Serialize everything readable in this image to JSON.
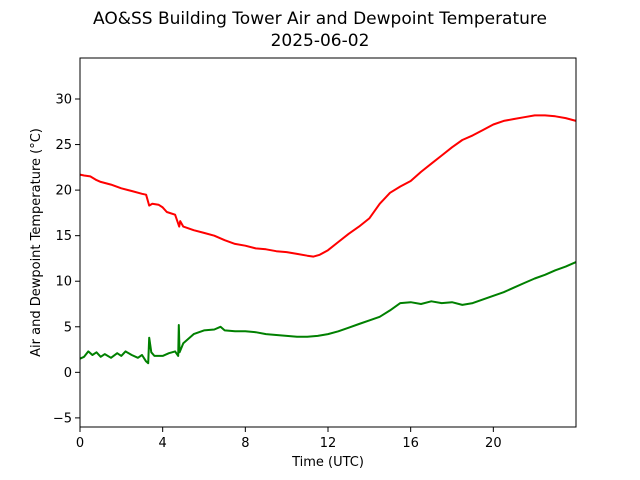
{
  "chart_data": {
    "type": "line",
    "title": "AO&SS Building Tower Air and Dewpoint Temperature",
    "subtitle": "2025-06-02",
    "xlabel": "Time (UTC)",
    "ylabel": "Air and Dewpoint Temperature (°C)",
    "xlim": [
      0,
      24
    ],
    "ylim": [
      -6,
      34.5
    ],
    "xticks": [
      0,
      4,
      8,
      12,
      16,
      20
    ],
    "yticks": [
      -5,
      0,
      5,
      10,
      15,
      20,
      25,
      30
    ],
    "grid": false,
    "legend": "none",
    "series": [
      {
        "color": "#ff0000",
        "x": [
          0,
          0.2,
          0.5,
          0.8,
          1.0,
          1.5,
          2.0,
          2.5,
          3.0,
          3.2,
          3.35,
          3.5,
          3.8,
          4.0,
          4.2,
          4.6,
          4.8,
          4.85,
          5.0,
          5.5,
          6.0,
          6.5,
          7.0,
          7.5,
          8.0,
          8.5,
          9.0,
          9.5,
          10.0,
          10.5,
          11.0,
          11.3,
          11.6,
          12.0,
          12.5,
          13.0,
          13.5,
          14.0,
          14.5,
          15.0,
          15.5,
          16.0,
          16.5,
          17.0,
          17.5,
          18.0,
          18.5,
          19.0,
          19.5,
          20.0,
          20.5,
          21.0,
          21.5,
          22.0,
          22.5,
          23.0,
          23.5,
          24.0
        ],
        "y": [
          21.7,
          21.6,
          21.5,
          21.1,
          20.9,
          20.6,
          20.2,
          19.9,
          19.6,
          19.5,
          18.3,
          18.5,
          18.4,
          18.1,
          17.6,
          17.3,
          16.0,
          16.6,
          16.0,
          15.6,
          15.3,
          15.0,
          14.5,
          14.1,
          13.9,
          13.6,
          13.5,
          13.3,
          13.2,
          13.0,
          12.8,
          12.7,
          12.9,
          13.4,
          14.3,
          15.2,
          16.0,
          16.9,
          18.5,
          19.7,
          20.4,
          21.0,
          22.0,
          22.9,
          23.8,
          24.7,
          25.5,
          26.0,
          26.6,
          27.2,
          27.6,
          27.8,
          28.0,
          28.2,
          28.2,
          28.1,
          27.9,
          27.6
        ]
      },
      {
        "color": "#008000",
        "x": [
          0,
          0.2,
          0.4,
          0.6,
          0.8,
          1.0,
          1.2,
          1.5,
          1.8,
          2.0,
          2.2,
          2.5,
          2.8,
          3.0,
          3.2,
          3.3,
          3.35,
          3.45,
          3.6,
          4.0,
          4.3,
          4.6,
          4.75,
          4.78,
          4.82,
          5.0,
          5.5,
          6.0,
          6.5,
          6.8,
          7.0,
          7.5,
          8.0,
          8.5,
          9.0,
          9.5,
          10.0,
          10.5,
          11.0,
          11.5,
          12.0,
          12.5,
          13.0,
          13.5,
          14.0,
          14.5,
          15.0,
          15.5,
          16.0,
          16.5,
          17.0,
          17.5,
          18.0,
          18.5,
          19.0,
          19.5,
          20.0,
          20.5,
          21.0,
          21.5,
          22.0,
          22.5,
          23.0,
          23.5,
          24.0
        ],
        "y": [
          1.5,
          1.7,
          2.3,
          1.9,
          2.2,
          1.7,
          2.0,
          1.6,
          2.1,
          1.8,
          2.3,
          1.9,
          1.6,
          1.9,
          1.2,
          1.0,
          3.8,
          2.2,
          1.8,
          1.8,
          2.1,
          2.3,
          1.8,
          5.2,
          2.2,
          3.2,
          4.2,
          4.6,
          4.7,
          5.0,
          4.6,
          4.5,
          4.5,
          4.4,
          4.2,
          4.1,
          4.0,
          3.9,
          3.9,
          4.0,
          4.2,
          4.5,
          4.9,
          5.3,
          5.7,
          6.1,
          6.8,
          7.6,
          7.7,
          7.5,
          7.8,
          7.6,
          7.7,
          7.4,
          7.6,
          8.0,
          8.4,
          8.8,
          9.3,
          9.8,
          10.3,
          10.7,
          11.2,
          11.6,
          12.1
        ]
      }
    ]
  }
}
